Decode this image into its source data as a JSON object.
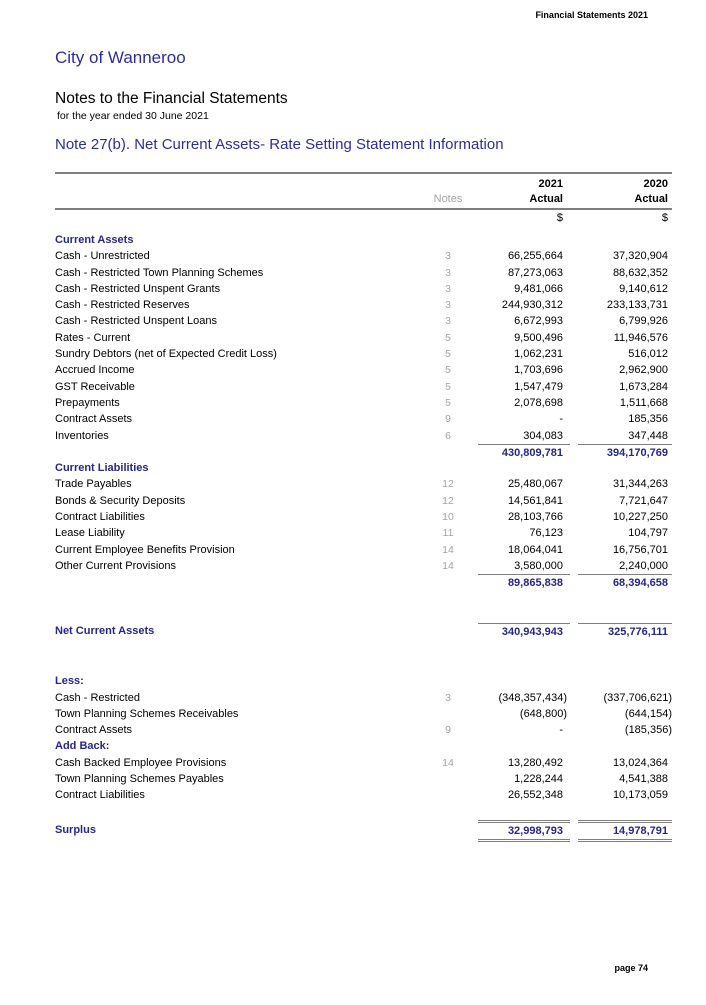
{
  "page": {
    "header_right": "Financial Statements 2021",
    "org": "City of Wanneroo",
    "doc_title": "Notes to the Financial Statements",
    "doc_subtitle": "for the year ended 30 June 2021",
    "note_title": "Note 27(b). Net Current Assets- Rate Setting Statement Information",
    "page_number": "page 74"
  },
  "colors": {
    "heading_blue": "#2D2D9E",
    "table_blue": "#26268C",
    "line_gray": "#7f7f7f",
    "note_gray": "#a3a3a3"
  },
  "table": {
    "columns": {
      "year_2021": "2021",
      "year_2020": "2020",
      "notes_label": "Notes",
      "actual_label": "Actual",
      "currency_symbol": "$"
    },
    "rows": [
      {
        "type": "section",
        "label": "Current Assets"
      },
      {
        "type": "item",
        "label": "Cash - Unrestricted",
        "note": "3",
        "v2021": "66,255,664",
        "v2020": "37,320,904"
      },
      {
        "type": "item",
        "label": "Cash - Restricted Town Planning Schemes",
        "note": "3",
        "v2021": "87,273,063",
        "v2020": "88,632,352"
      },
      {
        "type": "item",
        "label": "Cash - Restricted Unspent Grants",
        "note": "3",
        "v2021": "9,481,066",
        "v2020": "9,140,612"
      },
      {
        "type": "item",
        "label": "Cash - Restricted Reserves",
        "note": "3",
        "v2021": "244,930,312",
        "v2020": "233,133,731"
      },
      {
        "type": "item",
        "label": "Cash - Restricted Unspent Loans",
        "note": "3",
        "v2021": "6,672,993",
        "v2020": "6,799,926"
      },
      {
        "type": "item",
        "label": "Rates - Current",
        "note": "5",
        "v2021": "9,500,496",
        "v2020": "11,946,576"
      },
      {
        "type": "item",
        "label": "Sundry Debtors (net of Expected Credit Loss)",
        "note": "5",
        "v2021": "1,062,231",
        "v2020": "516,012"
      },
      {
        "type": "item",
        "label": "Accrued Income",
        "note": "5",
        "v2021": "1,703,696",
        "v2020": "2,962,900"
      },
      {
        "type": "item",
        "label": "GST Receivable",
        "note": "5",
        "v2021": "1,547,479",
        "v2020": "1,673,284"
      },
      {
        "type": "item",
        "label": "Prepayments",
        "note": "5",
        "v2021": "2,078,698",
        "v2020": "1,511,668"
      },
      {
        "type": "item",
        "label": "Contract Assets",
        "note": "9",
        "v2021": "-",
        "v2020": "185,356"
      },
      {
        "type": "item",
        "label": "Inventories",
        "note": "6",
        "v2021": "304,083",
        "v2020": "347,448"
      },
      {
        "type": "total",
        "v2021": "430,809,781",
        "v2020": "394,170,769"
      },
      {
        "type": "section",
        "label": "Current Liabilities"
      },
      {
        "type": "item",
        "label": "Trade Payables",
        "note": "12",
        "v2021": "25,480,067",
        "v2020": "31,344,263"
      },
      {
        "type": "item",
        "label": "Bonds & Security Deposits",
        "note": "12",
        "v2021": "14,561,841",
        "v2020": "7,721,647"
      },
      {
        "type": "item",
        "label": "Contract Liabilities",
        "note": "10",
        "v2021": "28,103,766",
        "v2020": "10,227,250"
      },
      {
        "type": "item",
        "label": "Lease Liability",
        "note": "11",
        "v2021": "76,123",
        "v2020": "104,797"
      },
      {
        "type": "item",
        "label": "Current Employee Benefits Provision",
        "note": "14",
        "v2021": "18,064,041",
        "v2020": "16,756,701"
      },
      {
        "type": "item",
        "label": "Other Current Provisions",
        "note": "14",
        "v2021": "3,580,000",
        "v2020": "2,240,000"
      },
      {
        "type": "total",
        "v2021": "89,865,838",
        "v2020": "68,394,658"
      },
      {
        "type": "spacer"
      },
      {
        "type": "spacer"
      },
      {
        "type": "net",
        "label": "Net Current Assets",
        "v2021": "340,943,943",
        "v2020": "325,776,111"
      },
      {
        "type": "spacer"
      },
      {
        "type": "spacer"
      },
      {
        "type": "section",
        "label": "Less:"
      },
      {
        "type": "item",
        "label": "Cash - Restricted",
        "note": "3",
        "v2021": "(348,357,434)",
        "v2020": "(337,706,621)"
      },
      {
        "type": "item",
        "label": "Town Planning Schemes Receivables",
        "note": "",
        "v2021": "(648,800)",
        "v2020": "(644,154)"
      },
      {
        "type": "item",
        "label": "Contract Assets",
        "note": "9",
        "v2021": "-",
        "v2020": "(185,356)"
      },
      {
        "type": "section",
        "label": "Add Back:"
      },
      {
        "type": "item",
        "label": "Cash Backed Employee Provisions",
        "note": "14",
        "v2021": "13,280,492",
        "v2020": "13,024,364"
      },
      {
        "type": "item",
        "label": "Town Planning Schemes Payables",
        "note": "",
        "v2021": "1,228,244",
        "v2020": "4,541,388"
      },
      {
        "type": "item",
        "label": "Contract Liabilities",
        "note": "",
        "v2021": "26,552,348",
        "v2020": "10,173,059"
      },
      {
        "type": "spacer"
      },
      {
        "type": "surplus",
        "label": "Surplus",
        "v2021": "32,998,793",
        "v2020": "14,978,791"
      }
    ]
  }
}
